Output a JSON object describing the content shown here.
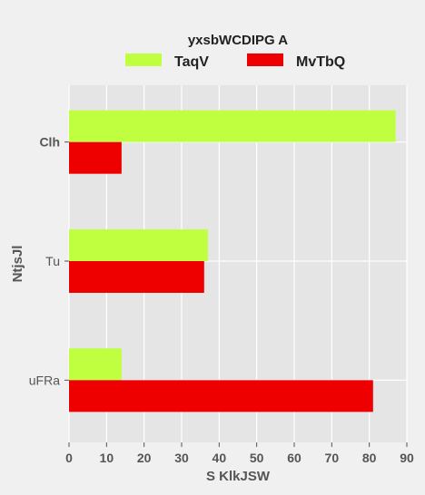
{
  "chart_data": {
    "type": "bar",
    "orientation": "horizontal",
    "legend_title": "yxsbWCDIPG A",
    "legend_position": "top-center",
    "categories": [
      "Clh",
      "Tu",
      "uFRa"
    ],
    "series": [
      {
        "name": "TaqV",
        "values": [
          87,
          37,
          14
        ],
        "color": "#bfff3f"
      },
      {
        "name": "MvTbQ",
        "values": [
          14,
          36,
          81
        ],
        "color": "#ee0000"
      }
    ],
    "xlabel": "S KlkJSW",
    "ylabel": "NtjsJl",
    "xlim": [
      0,
      90
    ],
    "xticks": [
      0,
      10,
      20,
      30,
      40,
      50,
      60,
      70,
      80,
      90
    ],
    "grid": true,
    "plot_background": "#e5e5e5",
    "page_background": "#f0f0f0"
  }
}
